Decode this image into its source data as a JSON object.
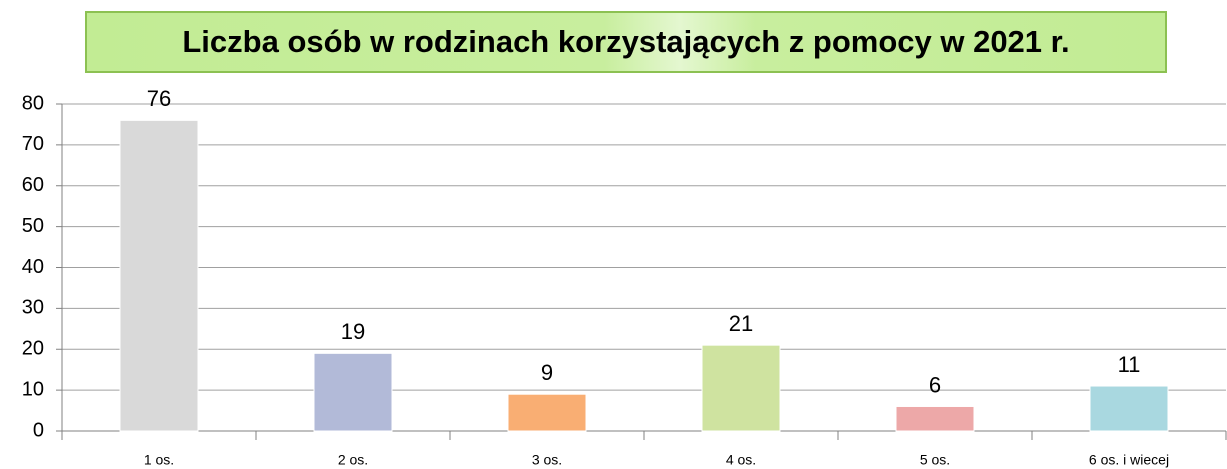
{
  "chart_data": {
    "type": "bar",
    "title": "Liczba osób w rodzinach korzystających z pomocy w 2021 r.",
    "categories": [
      "1 os.",
      "2 os.",
      "3 os.",
      "4 os.",
      "5 os.",
      "6 os. i wiecej"
    ],
    "values": [
      76,
      19,
      9,
      21,
      6,
      11
    ],
    "colors": [
      "#d9d9d9",
      "#b2bad8",
      "#f9ae73",
      "#cfe3a0",
      "#eda8a8",
      "#a9d8e0"
    ],
    "ylim": [
      0,
      80
    ],
    "yticks": [
      0,
      10,
      20,
      30,
      40,
      50,
      60,
      70,
      80
    ],
    "grid": true
  }
}
